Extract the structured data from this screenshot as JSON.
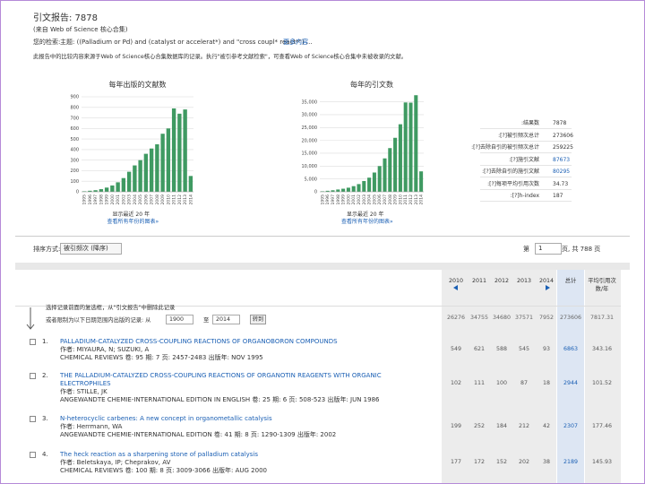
{
  "header": {
    "title": "引文报告: 7878",
    "source": "(来自 Web of Science 核心合集)",
    "query_label": "您的检索:",
    "query": "主题: ((Palladium or Pd) and (catalyst or accelerat*) and \"cross coupl* react*\") ...",
    "more": "更多内容"
  },
  "note": "此报告中的比较内容来源于Web of Science核心合集数据库的记录。执行\"被引参考文献检索\"，可查看Web of Science核心合集中未被收录的文献。",
  "chart_data": [
    {
      "type": "bar",
      "title": "每年出版的文献数",
      "categories": [
        "1995",
        "1996",
        "1997",
        "1998",
        "1999",
        "2000",
        "2001",
        "2002",
        "2003",
        "2004",
        "2005",
        "2006",
        "2007",
        "2008",
        "2009",
        "2010",
        "2011",
        "2012",
        "2013",
        "2014"
      ],
      "values": [
        5,
        10,
        15,
        25,
        40,
        60,
        90,
        130,
        190,
        250,
        300,
        360,
        410,
        450,
        550,
        600,
        790,
        740,
        780,
        150
      ],
      "color": "#3f9a62",
      "ylim": [
        0,
        900
      ],
      "yticks": [
        0,
        100,
        200,
        300,
        400,
        500,
        600,
        700,
        800,
        900
      ],
      "grid": true,
      "caption": "显示最近 20 年",
      "link": "查看所有年份的图表»"
    },
    {
      "type": "bar",
      "title": "每年的引文数",
      "categories": [
        "1995",
        "1996",
        "1997",
        "1998",
        "1999",
        "2000",
        "2001",
        "2002",
        "2003",
        "2004",
        "2005",
        "2006",
        "2007",
        "2008",
        "2009",
        "2010",
        "2011",
        "2012",
        "2013",
        "2014"
      ],
      "values": [
        200,
        400,
        600,
        900,
        1200,
        1600,
        2200,
        3000,
        4200,
        5500,
        7500,
        10000,
        13000,
        17000,
        21000,
        26276,
        34755,
        34680,
        37571,
        7952
      ],
      "color": "#3f9a62",
      "ylim": [
        0,
        38000
      ],
      "yticks": [
        0,
        {
          "value": 5000,
          "label": "5,000"
        },
        {
          "value": 10000,
          "label": "10,000"
        },
        {
          "value": 15000,
          "label": "15,000"
        },
        {
          "value": 20000,
          "label": "20,000"
        },
        {
          "value": 25000,
          "label": "25,000"
        },
        {
          "value": 30000,
          "label": "30,000"
        },
        {
          "value": 35000,
          "label": "35,000"
        }
      ],
      "grid": true,
      "caption": "显示最近 20 年",
      "link": "查看所有年份的图表»"
    }
  ],
  "stats": [
    {
      "label": "结果数:",
      "value": 7878
    },
    {
      "label": "被引频次总计[?]:",
      "value": 273606
    },
    {
      "label": "去除自引的被引频次总计[?]:",
      "value": 259225
    },
    {
      "label": "施引文献[?]:",
      "value": 87673
    },
    {
      "label": "去除自引的施引文献[?]:",
      "value": 80295
    },
    {
      "label": "每项平均引用次数[?]:",
      "value": 34.73
    },
    {
      "label": "h-index[?]:",
      "value": 187
    }
  ],
  "sort": {
    "label": "排序方式:",
    "value": "被引频次 (降序)"
  },
  "pagination": {
    "before": "第",
    "page": "1",
    "after": "页, 共 788 页"
  },
  "table": {
    "columns": [
      "2010",
      "2011",
      "2012",
      "2013",
      "2014",
      "总计",
      "平均引用次数/年"
    ],
    "instructions": [
      "选择记录前面的复选框，从\"引文报告\"中删除此记录",
      "或者限制为以下日期范围内出版的记录: 从"
    ],
    "range": {
      "from": "1900",
      "to_label": "至",
      "to": "2014",
      "go": "转到"
    },
    "totals": [
      26276,
      34755,
      34680,
      37571,
      7952,
      273606,
      7817.31
    ],
    "records": [
      {
        "index": "1.",
        "title": "PALLADIUM-CATALYZED CROSS-COUPLING REACTIONS OF ORGANOBORON COMPOUNDS",
        "authors": "作者: MIYAURA, N; SUZUKI, A",
        "source": "CHEMICAL REVIEWS 卷: 95 期: 7 页: 2457-2483 出版年: NOV 1995",
        "counts": [
          549,
          621,
          588,
          545,
          93,
          6863,
          343.16
        ]
      },
      {
        "index": "2.",
        "title": "THE PALLADIUM-CATALYZED CROSS-COUPLING REACTIONS OF ORGANOTIN REAGENTS WITH ORGANIC ELECTROPHILES",
        "authors": "作者: STILLE, JK",
        "source": "ANGEWANDTE CHEMIE-INTERNATIONAL EDITION IN ENGLISH 卷: 25 期: 6 页: 508-523 出版年: JUN 1986",
        "counts": [
          102,
          111,
          100,
          87,
          18,
          2944,
          101.52
        ]
      },
      {
        "index": "3.",
        "title": "N-heterocyclic carbenes: A new concept in organometallic catalysis",
        "authors": "作者: Herrmann, WA",
        "source": "ANGEWANDTE CHEMIE-INTERNATIONAL EDITION 卷: 41 期: 8 页: 1290-1309 出版年: 2002",
        "counts": [
          199,
          252,
          184,
          212,
          42,
          2307,
          177.46
        ]
      },
      {
        "index": "4.",
        "title": "The heck reaction as a sharpening stone of palladium catalysis",
        "authors": "作者: Beletskaya, IP; Cheprakov, AV",
        "source": "CHEMICAL REVIEWS 卷: 100 期: 8 页: 3009-3066 出版年: AUG 2000",
        "counts": [
          177,
          172,
          152,
          202,
          38,
          2189,
          145.93
        ]
      }
    ]
  }
}
